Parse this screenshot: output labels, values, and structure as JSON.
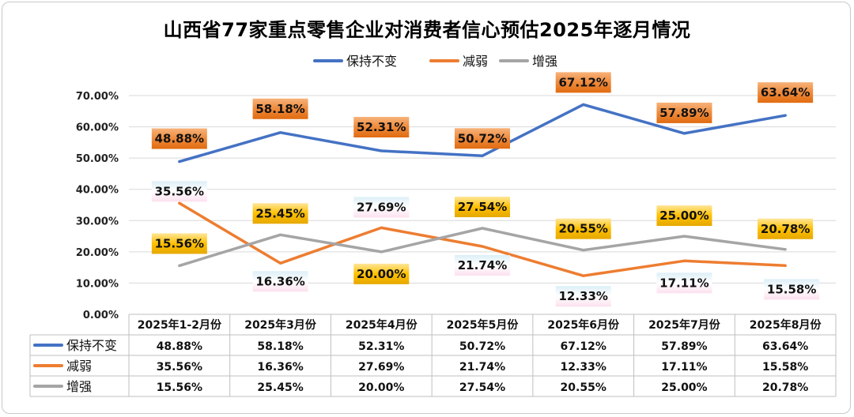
{
  "chart_data": {
    "type": "line",
    "title": "山西省77家重点零售企业对消费者信心预估2025年逐月情况",
    "categories": [
      "2025年1-2月份",
      "2025年3月份",
      "2025年4月份",
      "2025年5月份",
      "2025年6月份",
      "2025年7月份",
      "2025年8月份"
    ],
    "series": [
      {
        "name": "保持不变",
        "color": "#4472C4",
        "values": [
          48.88,
          58.18,
          52.31,
          50.72,
          67.12,
          57.89,
          63.64
        ],
        "labels": [
          "48.88%",
          "58.18%",
          "52.31%",
          "50.72%",
          "67.12%",
          "57.89%",
          "63.64%"
        ]
      },
      {
        "name": "减弱",
        "color": "#ED7D31",
        "values": [
          35.56,
          16.36,
          27.69,
          21.74,
          12.33,
          17.11,
          15.58
        ],
        "labels": [
          "35.56%",
          "16.36%",
          "27.69%",
          "21.74%",
          "12.33%",
          "17.11%",
          "15.58%"
        ]
      },
      {
        "name": "增强",
        "color": "#A5A5A5",
        "values": [
          15.56,
          25.45,
          20.0,
          27.54,
          20.55,
          25.0,
          20.78
        ],
        "labels": [
          "15.56%",
          "25.45%",
          "20.00%",
          "27.54%",
          "20.55%",
          "25.00%",
          "20.78%"
        ]
      }
    ],
    "ylim": [
      0,
      70
    ],
    "yticks": [
      "0.00%",
      "10.00%",
      "20.00%",
      "30.00%",
      "40.00%",
      "50.00%",
      "60.00%",
      "70.00%"
    ],
    "grid": true,
    "legend": "top-center",
    "data_table": true
  }
}
